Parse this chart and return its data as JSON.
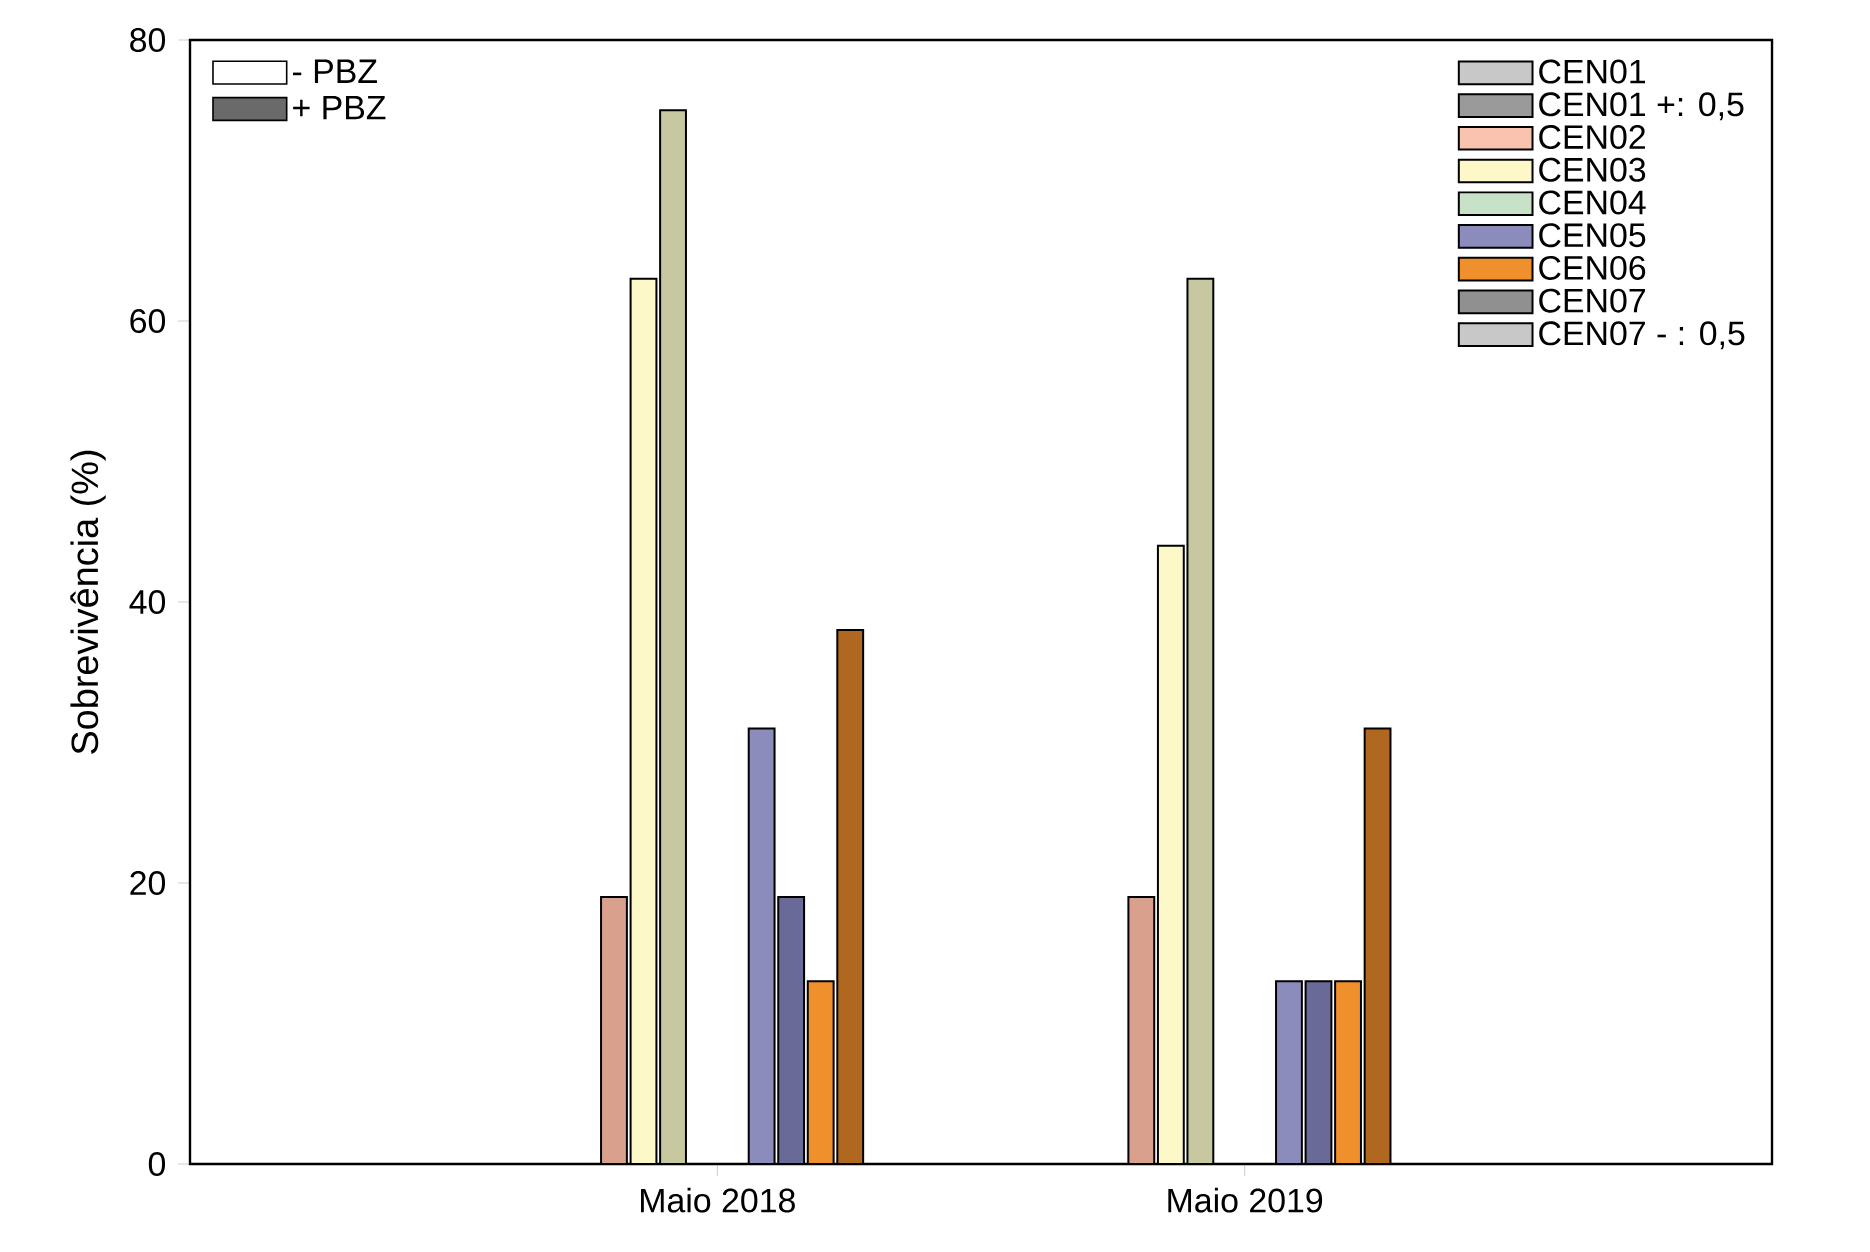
{
  "chart_data": {
    "type": "bar",
    "ylabel": "Sobrevivência (%)",
    "categories": [
      "Maio 2018",
      "Maio 2019"
    ],
    "ylim": [
      0,
      80
    ],
    "yticks": [
      0,
      20,
      40,
      60,
      80
    ],
    "legend": "top right",
    "grid": false,
    "series": [
      {
        "name": "CEN01",
        "color": "#c8c8c8",
        "values": [
          0,
          0
        ]
      },
      {
        "name": "CEN01 +: 0,5",
        "color": "#9a9a9a",
        "values": [
          0,
          0
        ]
      },
      {
        "name": "CEN02",
        "color": "#f9c3b0",
        "values": [
          0,
          0
        ]
      },
      {
        "color": "#d9a08e",
        "values": [
          19,
          19
        ]
      },
      {
        "name": "CEN03",
        "color": "#fdf8c8",
        "values": [
          63,
          44
        ]
      },
      {
        "color": "#c8c8a0",
        "values": [
          75,
          63
        ]
      },
      {
        "name": "CEN04",
        "color": "#c8e2c8",
        "values": [
          0,
          0
        ]
      },
      {
        "color": "#92aa92",
        "values": [
          0,
          0
        ]
      },
      {
        "name": "CEN05",
        "color": "#8c8cbc",
        "values": [
          31,
          13
        ]
      },
      {
        "color": "#6a6a98",
        "values": [
          19,
          13
        ]
      },
      {
        "name": "CEN06",
        "color": "#f0902c",
        "values": [
          13,
          13
        ]
      },
      {
        "color": "#b06820",
        "values": [
          38,
          31
        ]
      },
      {
        "name": "CEN07",
        "color": "#909090",
        "values": [
          0,
          0
        ]
      },
      {
        "name": "CEN07 - : 0,5",
        "color": "#c8c8c8",
        "values": [
          0,
          0
        ]
      },
      {
        "name": "- PBZ",
        "color": "#ffffff",
        "values": [
          null,
          null
        ]
      },
      {
        "name": "+ PBZ",
        "color": "#6a6a6a",
        "values": [
          null,
          null
        ]
      }
    ]
  }
}
